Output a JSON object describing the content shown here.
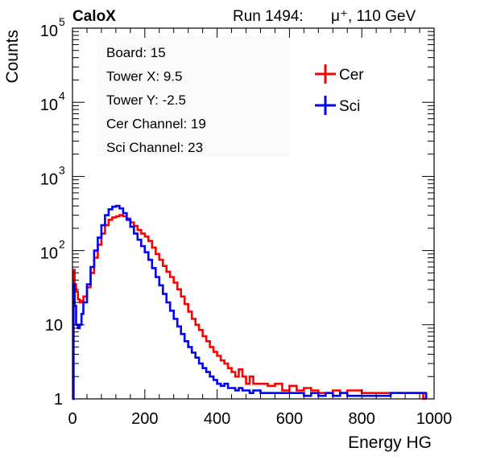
{
  "header": {
    "experiment": "CaloX",
    "run": "Run 1494:",
    "particle": "μ⁺, 110 GeV"
  },
  "info_box": {
    "lines": [
      "Board: 15",
      "Tower X: 9.5",
      "Tower Y: -2.5",
      "Cer Channel: 19",
      "Sci Channel: 23"
    ]
  },
  "chart_data": {
    "type": "line",
    "xlabel": "Energy HG",
    "ylabel": "Counts",
    "xlim": [
      0,
      1000
    ],
    "ylim": [
      1,
      100000
    ],
    "y_scale": "log",
    "x_ticks": [
      "0",
      "200",
      "400",
      "600",
      "800",
      "1000"
    ],
    "y_ticks": [
      {
        "base": "1",
        "exp": ""
      },
      {
        "base": "10",
        "exp": ""
      },
      {
        "base": "10",
        "exp": "2"
      },
      {
        "base": "10",
        "exp": "3"
      },
      {
        "base": "10",
        "exp": "4"
      },
      {
        "base": "10",
        "exp": "5"
      }
    ],
    "legend_position": "top-right",
    "series": [
      {
        "name": "Cer",
        "color": "#ff0000",
        "x": [
          0,
          3,
          6,
          10,
          15,
          20,
          25,
          30,
          40,
          50,
          60,
          70,
          80,
          90,
          100,
          110,
          120,
          130,
          140,
          150,
          160,
          170,
          180,
          190,
          200,
          210,
          220,
          230,
          240,
          250,
          260,
          270,
          280,
          290,
          300,
          310,
          320,
          330,
          340,
          350,
          360,
          370,
          380,
          390,
          400,
          410,
          420,
          430,
          440,
          450,
          460,
          470,
          480,
          490,
          500,
          520,
          540,
          560,
          580,
          600,
          620,
          640,
          660,
          680,
          700,
          720,
          740,
          760,
          780,
          800,
          970,
          978
        ],
        "y": [
          1,
          55,
          35,
          28,
          22,
          20,
          21,
          24,
          32,
          50,
          80,
          120,
          170,
          220,
          260,
          280,
          290,
          300,
          290,
          270,
          240,
          215,
          190,
          170,
          155,
          135,
          110,
          90,
          75,
          62,
          52,
          44,
          37,
          30,
          24,
          19,
          15,
          12,
          10,
          8.5,
          7,
          6,
          5,
          4.3,
          3.8,
          3.3,
          3,
          2.6,
          2.3,
          2,
          2.5,
          2,
          1.6,
          2,
          1.6,
          1.6,
          1.5,
          1.6,
          1.3,
          1.5,
          1.3,
          1.4,
          1.3,
          1.2,
          1.2,
          1.3,
          1.2,
          1.3,
          1.3,
          1.2,
          1,
          1
        ]
      },
      {
        "name": "Sci",
        "color": "#0000ff",
        "x": [
          0,
          3,
          6,
          10,
          15,
          20,
          25,
          30,
          40,
          50,
          60,
          70,
          80,
          90,
          100,
          110,
          120,
          130,
          140,
          150,
          160,
          170,
          180,
          190,
          200,
          210,
          220,
          230,
          240,
          250,
          260,
          270,
          280,
          290,
          300,
          310,
          320,
          330,
          340,
          350,
          360,
          370,
          380,
          390,
          400,
          410,
          420,
          430,
          440,
          450,
          460,
          470,
          480,
          490,
          500,
          520,
          540,
          560,
          580,
          600,
          620,
          640,
          660,
          680,
          700,
          720,
          740,
          760,
          880,
          900,
          978
        ],
        "y": [
          1,
          35,
          18,
          10,
          9,
          10,
          14,
          20,
          35,
          60,
          100,
          150,
          220,
          300,
          360,
          390,
          400,
          370,
          320,
          260,
          210,
          170,
          140,
          115,
          95,
          75,
          58,
          44,
          34,
          26,
          20,
          15.5,
          12,
          9.5,
          7.5,
          6,
          5,
          4.2,
          3.6,
          3,
          2.6,
          2.3,
          2,
          1.8,
          1.6,
          1.5,
          1.6,
          1.4,
          1.4,
          1.3,
          1.4,
          1.3,
          1.3,
          1.2,
          1.3,
          1.2,
          1.2,
          1.2,
          1.2,
          1.2,
          1.2,
          1.1,
          1.2,
          1.1,
          1.2,
          1.1,
          1.2,
          1.1,
          1.2,
          1.2,
          1
        ]
      }
    ]
  }
}
